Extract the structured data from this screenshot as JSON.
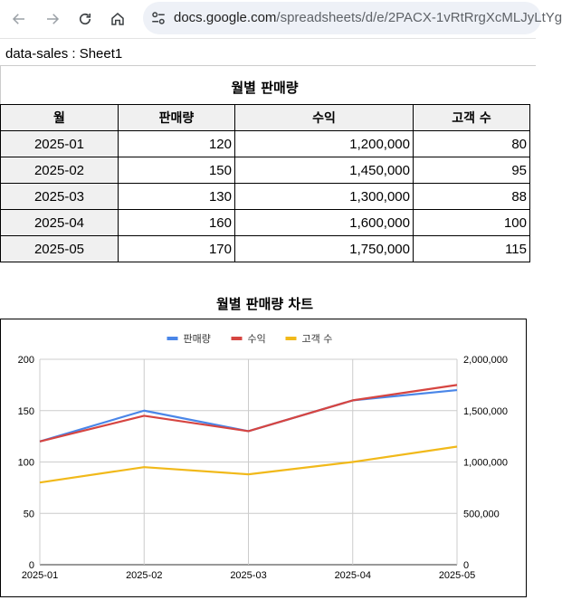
{
  "browser": {
    "url_main": "docs.google.com",
    "url_path": "/spreadsheets/d/e/2PACX-1vRtRrgXcMLJyLtYg",
    "icons": [
      "back-arrow-icon",
      "forward-arrow-icon",
      "reload-icon",
      "home-icon",
      "site-settings-icon"
    ]
  },
  "sheet": {
    "name": "data-sales : Sheet1"
  },
  "table": {
    "title": "월별 판매량",
    "headers": [
      "월",
      "판매량",
      "수익",
      "고객 수"
    ],
    "rows": [
      [
        "2025-01",
        "120",
        "1,200,000",
        "80"
      ],
      [
        "2025-02",
        "150",
        "1,450,000",
        "95"
      ],
      [
        "2025-03",
        "130",
        "1,300,000",
        "88"
      ],
      [
        "2025-04",
        "160",
        "1,600,000",
        "100"
      ],
      [
        "2025-05",
        "170",
        "1,750,000",
        "115"
      ]
    ]
  },
  "chart_data": {
    "type": "line",
    "title": "월별 판매량 차트",
    "categories": [
      "2025-01",
      "2025-02",
      "2025-03",
      "2025-04",
      "2025-05"
    ],
    "series": [
      {
        "name": "판매량",
        "axis": "left",
        "color": "#4a86e8",
        "values": [
          120,
          150,
          130,
          160,
          170
        ]
      },
      {
        "name": "수익",
        "axis": "right",
        "color": "#d64541",
        "values": [
          1200000,
          1450000,
          1300000,
          1600000,
          1750000
        ]
      },
      {
        "name": "고객 수",
        "axis": "left",
        "color": "#f1b91a",
        "values": [
          80,
          95,
          88,
          100,
          115
        ]
      }
    ],
    "ylim_left": [
      0,
      200
    ],
    "ylim_right": [
      0,
      2000000
    ],
    "yticks_left": [
      "0",
      "50",
      "100",
      "150",
      "200"
    ],
    "yticks_right": [
      "0",
      "500,000",
      "1,000,000",
      "1,500,000",
      "2,000,000"
    ],
    "legend": "top",
    "grid": true
  }
}
